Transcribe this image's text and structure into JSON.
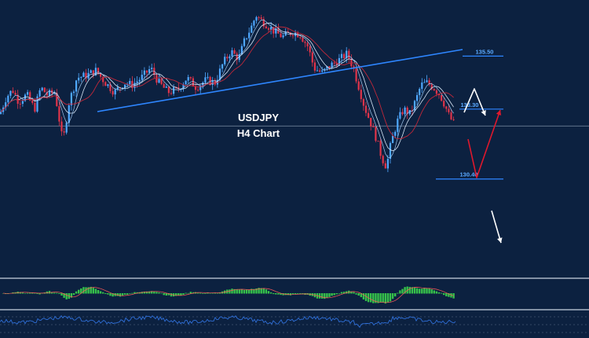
{
  "chart_data": {
    "type": "candlestick",
    "title": "USDJPY",
    "subtitle": "H4 Chart",
    "colors": {
      "background": "#0c2140",
      "bull": "#4fa8ff",
      "bear": "#e0344a",
      "ma_fast": "#d8e6f5",
      "ma_slow": "#c0283a",
      "trendline": "#2e86ff",
      "level": "#2e86ff",
      "arrow_up": "#ffffff",
      "arrow_red": "#e0182c",
      "hist": "#36c24a",
      "osc": "#2f6fd8"
    },
    "close_path": [
      [
        0,
        133.1
      ],
      [
        8,
        133.8
      ],
      [
        16,
        134.1
      ],
      [
        24,
        133.6
      ],
      [
        34,
        133.9
      ],
      [
        44,
        133.3
      ],
      [
        52,
        134.2
      ],
      [
        60,
        133.9
      ],
      [
        70,
        134.0
      ],
      [
        80,
        131.9
      ],
      [
        88,
        133.6
      ],
      [
        98,
        134.6
      ],
      [
        110,
        134.7
      ],
      [
        122,
        134.9
      ],
      [
        134,
        134.4
      ],
      [
        146,
        134.0
      ],
      [
        158,
        134.4
      ],
      [
        168,
        134.3
      ],
      [
        180,
        134.6
      ],
      [
        192,
        135.0
      ],
      [
        202,
        134.4
      ],
      [
        214,
        134.0
      ],
      [
        226,
        134.1
      ],
      [
        238,
        134.6
      ],
      [
        250,
        134.2
      ],
      [
        262,
        134.5
      ],
      [
        274,
        134.4
      ],
      [
        284,
        135.2
      ],
      [
        294,
        135.7
      ],
      [
        304,
        135.4
      ],
      [
        312,
        136.2
      ],
      [
        320,
        136.7
      ],
      [
        326,
        137.2
      ],
      [
        332,
        137.0
      ],
      [
        340,
        136.8
      ],
      [
        350,
        136.5
      ],
      [
        360,
        136.3
      ],
      [
        372,
        136.5
      ],
      [
        382,
        136.4
      ],
      [
        392,
        135.9
      ],
      [
        400,
        135.0
      ],
      [
        410,
        134.8
      ],
      [
        420,
        135.1
      ],
      [
        430,
        135.3
      ],
      [
        442,
        135.6
      ],
      [
        450,
        135.0
      ],
      [
        458,
        134.1
      ],
      [
        464,
        133.4
      ],
      [
        470,
        132.9
      ],
      [
        478,
        132.2
      ],
      [
        486,
        131.3
      ],
      [
        492,
        130.9
      ],
      [
        498,
        131.9
      ],
      [
        506,
        132.8
      ],
      [
        514,
        133.3
      ],
      [
        522,
        133.1
      ],
      [
        530,
        133.7
      ],
      [
        536,
        134.3
      ],
      [
        544,
        134.4
      ],
      [
        552,
        134.2
      ],
      [
        560,
        133.9
      ],
      [
        566,
        133.5
      ],
      [
        572,
        133.0
      ],
      [
        578,
        132.7
      ],
      [
        582,
        132.6
      ]
    ],
    "levels": [
      {
        "price": 135.5,
        "label": "135.50"
      },
      {
        "price": 133.3,
        "label": "133.30"
      },
      {
        "price": 130.4,
        "label": "130.40"
      }
    ],
    "current_price": 132.6
  }
}
